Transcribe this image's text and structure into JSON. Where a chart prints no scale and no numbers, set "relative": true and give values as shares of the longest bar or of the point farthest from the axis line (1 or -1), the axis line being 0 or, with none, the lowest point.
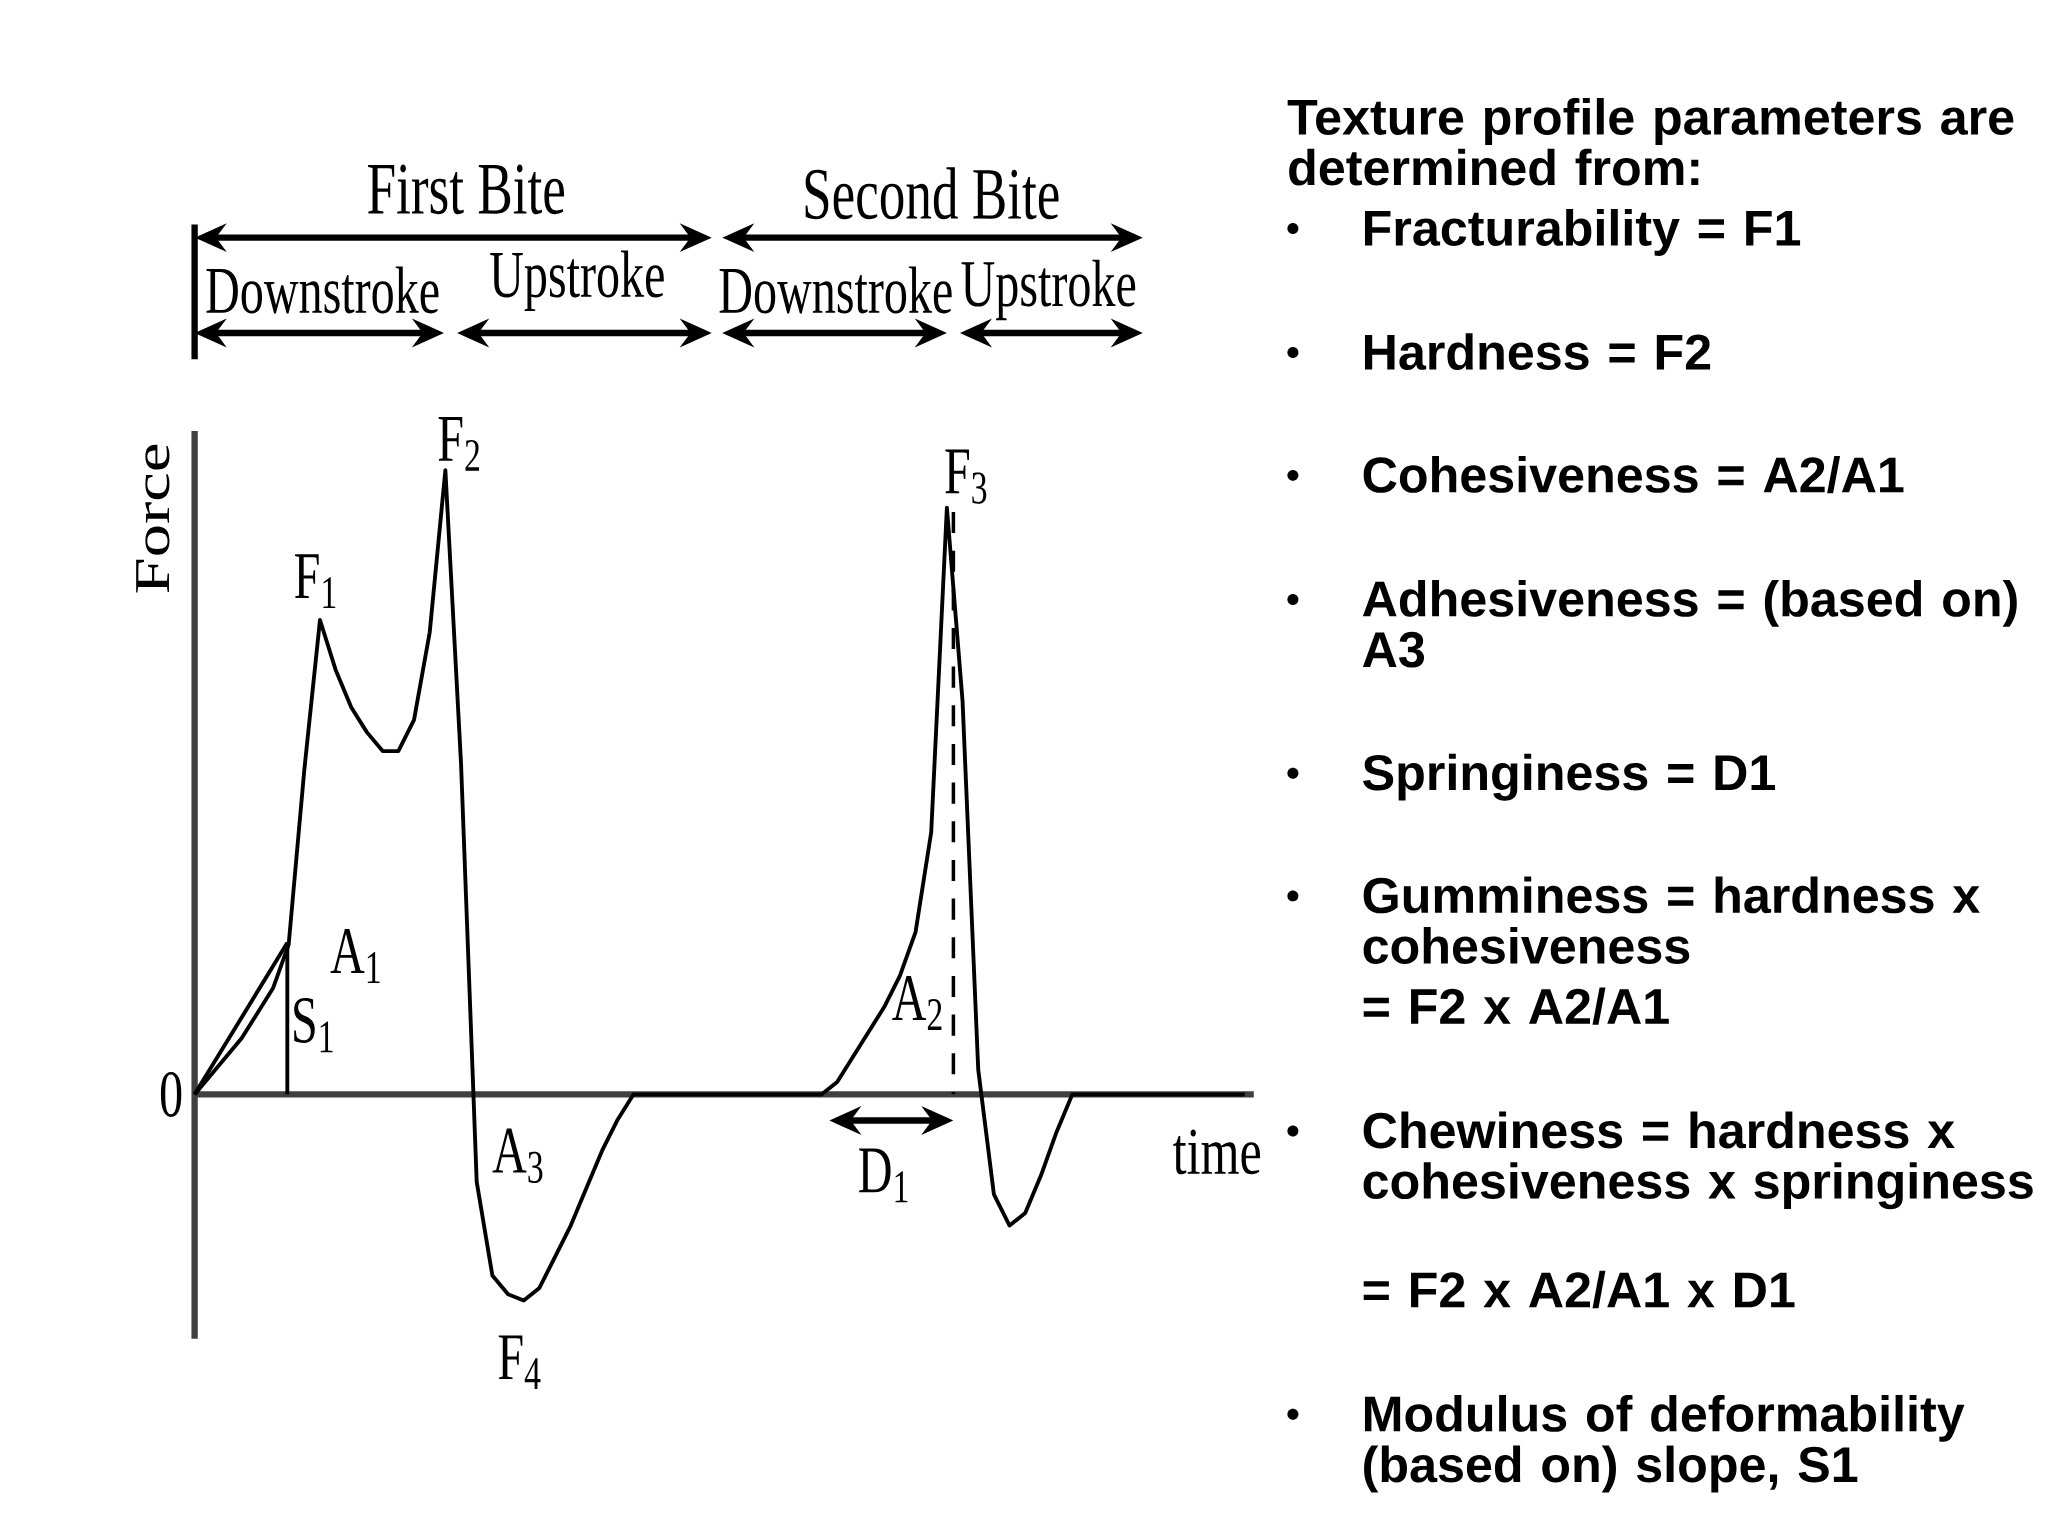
{
  "chart_data": [
    {
      "type": "line",
      "relative": true,
      "line_style": "solid",
      "xlabel": "time",
      "ylabel": "Force",
      "categories": [
        null,
        null,
        null,
        null,
        null,
        null,
        null,
        null,
        null,
        null,
        null,
        null,
        null,
        null,
        null,
        null,
        null,
        null,
        null,
        null,
        null,
        null,
        null,
        null,
        null,
        null,
        null,
        null,
        null,
        null,
        null,
        null,
        null,
        null,
        null,
        null,
        null,
        null,
        null,
        null,
        null,
        null,
        null,
        null,
        null,
        null,
        null,
        null,
        null,
        null,
        null,
        null,
        null,
        null,
        null,
        null,
        null,
        null,
        null,
        null,
        null,
        null,
        null,
        null,
        null,
        null,
        null,
        null
      ],
      "series": [
        {
          "color": "#000000",
          "values": [
            0,
            0.03,
            0.06,
            0.09,
            0.13,
            0.17,
            0.24,
            0.52,
            0.76,
            0.68,
            0.62,
            0.58,
            0.55,
            0.55,
            0.6,
            0.74,
            1.0,
            0.53,
            -0.14,
            -0.29,
            -0.32,
            -0.33,
            -0.31,
            -0.26,
            -0.21,
            -0.15,
            -0.09,
            -0.04,
            0,
            0,
            0,
            0,
            0,
            0,
            0,
            0,
            0,
            0,
            0,
            0,
            0,
            0.02,
            0.06,
            0.1,
            0.14,
            0.19,
            0.26,
            0.42,
            0.94,
            0.63,
            0.04,
            -0.16,
            -0.21,
            -0.19,
            -0.13,
            -0.06,
            0,
            0,
            0,
            0,
            0,
            0,
            0,
            0,
            0,
            0,
            0,
            0
          ]
        }
      ],
      "annotations": [
        "First Bite",
        "Second Bite",
        "Downstroke",
        "Upstroke",
        "Downstroke",
        "Upstroke",
        "F$_{1}$",
        "F$_{2}$",
        "F$_{3}$",
        "F$_{4}$",
        "A$_{1}$",
        "A$_{2}$",
        "A$_{3}$",
        "S$_{1}$",
        "D$_{1}$",
        "0"
      ]
    },
    {
      "type": "other",
      "title": "Texture profile parameters are determined from:",
      "annotations": [
        "Fracturability = F1",
        "Hardness = F2",
        "Cohesiveness = A2/A1",
        "Adhesiveness = (based on) A3",
        "Springiness = D1",
        "Gumminess = hardness x cohesiveness",
        "= F2 x A2/A1",
        "Chewiness = hardness x cohesiveness x springiness",
        "= F2 x A2/A1 x D1",
        "Modulus of deformability (based on) slope, S1"
      ]
    }
  ]
}
